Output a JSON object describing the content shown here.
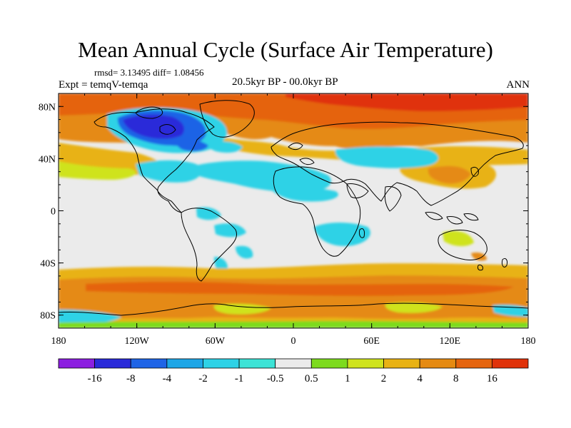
{
  "title": "Mean Annual Cycle (Surface Air Temperature)",
  "stats_text": "rmsd= 3.13495 diff= 1.08456",
  "experiment_text": "Expt = temqV-temqa",
  "period_text": "20.5kyr BP - 00.0kyr BP",
  "season_text": "ANN",
  "map": {
    "projection": "cylindrical-equidistant",
    "lon_range": [
      -180,
      180
    ],
    "lat_range": [
      -90,
      90
    ],
    "x_ticks": [
      {
        "lon": -180,
        "label": "180"
      },
      {
        "lon": -120,
        "label": "120W"
      },
      {
        "lon": -60,
        "label": "60W"
      },
      {
        "lon": 0,
        "label": "0"
      },
      {
        "lon": 60,
        "label": "60E"
      },
      {
        "lon": 120,
        "label": "120E"
      },
      {
        "lon": 180,
        "label": "180"
      }
    ],
    "y_ticks": [
      {
        "lat": 80,
        "label": "80N"
      },
      {
        "lat": 40,
        "label": "40N"
      },
      {
        "lat": 0,
        "label": "0"
      },
      {
        "lat": -40,
        "label": "40S"
      },
      {
        "lat": -80,
        "label": "80S"
      }
    ]
  },
  "colorbar": {
    "colors": [
      "#8c1fe0",
      "#2a2ad9",
      "#1f64e6",
      "#1ea6e6",
      "#2ed2e6",
      "#3de3d6",
      "#ebebeb",
      "#7ddb1e",
      "#cfe31e",
      "#e8b214",
      "#e58a12",
      "#e5640e",
      "#e0320a"
    ],
    "labels": [
      "-16",
      "-8",
      "-4",
      "-2",
      "-1",
      "-0.5",
      "0.5",
      "1",
      "2",
      "4",
      "8",
      "16"
    ]
  }
}
